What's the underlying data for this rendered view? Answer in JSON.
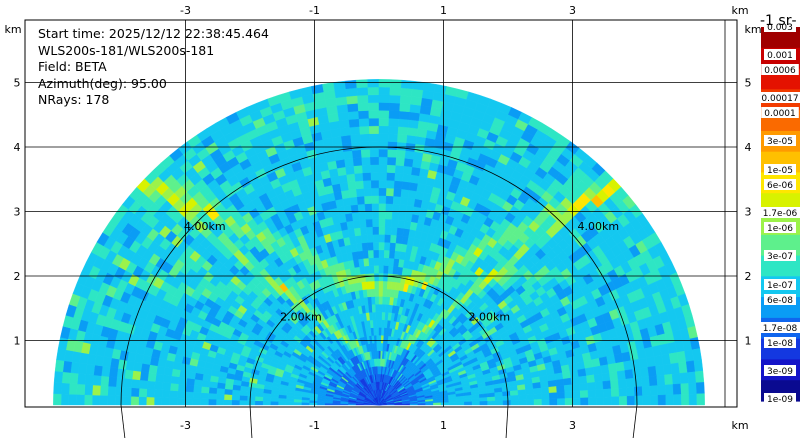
{
  "header": {
    "lines": [
      "Start time: 2025/12/12 22:38:45.464",
      "WLS200s-181/WLS200s-181",
      "Field: BETA",
      "Azimuth(deg): 95.00",
      "NRays: 178"
    ]
  },
  "chart_data": {
    "type": "heatmap",
    "title": "",
    "xlabel": "km",
    "ylabel": "km",
    "xlim": [
      -5.2,
      5.2
    ],
    "ylim": [
      0,
      5.5
    ],
    "x_ticks": [
      -3,
      -1,
      1,
      3
    ],
    "y_ticks": [
      1,
      2,
      3,
      4,
      5
    ],
    "x_tick_labels": [
      "-3",
      "-1",
      "1",
      "3"
    ],
    "y_tick_labels": [
      "1",
      "2",
      "3",
      "4",
      "5"
    ],
    "range_rings_km": [
      2,
      4
    ],
    "range_ring_labels": [
      "2.00km",
      "4.00km"
    ],
    "max_range_km": 5.05,
    "grid": true,
    "colorbar": {
      "unit_label": "‑1 sr‑",
      "labels": [
        "0.003",
        "0.001",
        "0.0006",
        "0.00017",
        "0.0001",
        "3e-05",
        "1e-05",
        "6e-06",
        "1.7e-06",
        "1e-06",
        "3e-07",
        "1e-07",
        "6e-08",
        "1.7e-08",
        "1e-08",
        "3e-09",
        "1e-09"
      ],
      "colors": [
        "#a00000",
        "#c80000",
        "#e41200",
        "#f23c00",
        "#fa6a00",
        "#ff9a00",
        "#ffc000",
        "#ffe600",
        "#d8f200",
        "#9cf24a",
        "#5ef08c",
        "#2ee6c4",
        "#14c8f0",
        "#0a9cf5",
        "#1066ee",
        "#1438e0",
        "#1414c8",
        "#0a0a90"
      ]
    }
  }
}
